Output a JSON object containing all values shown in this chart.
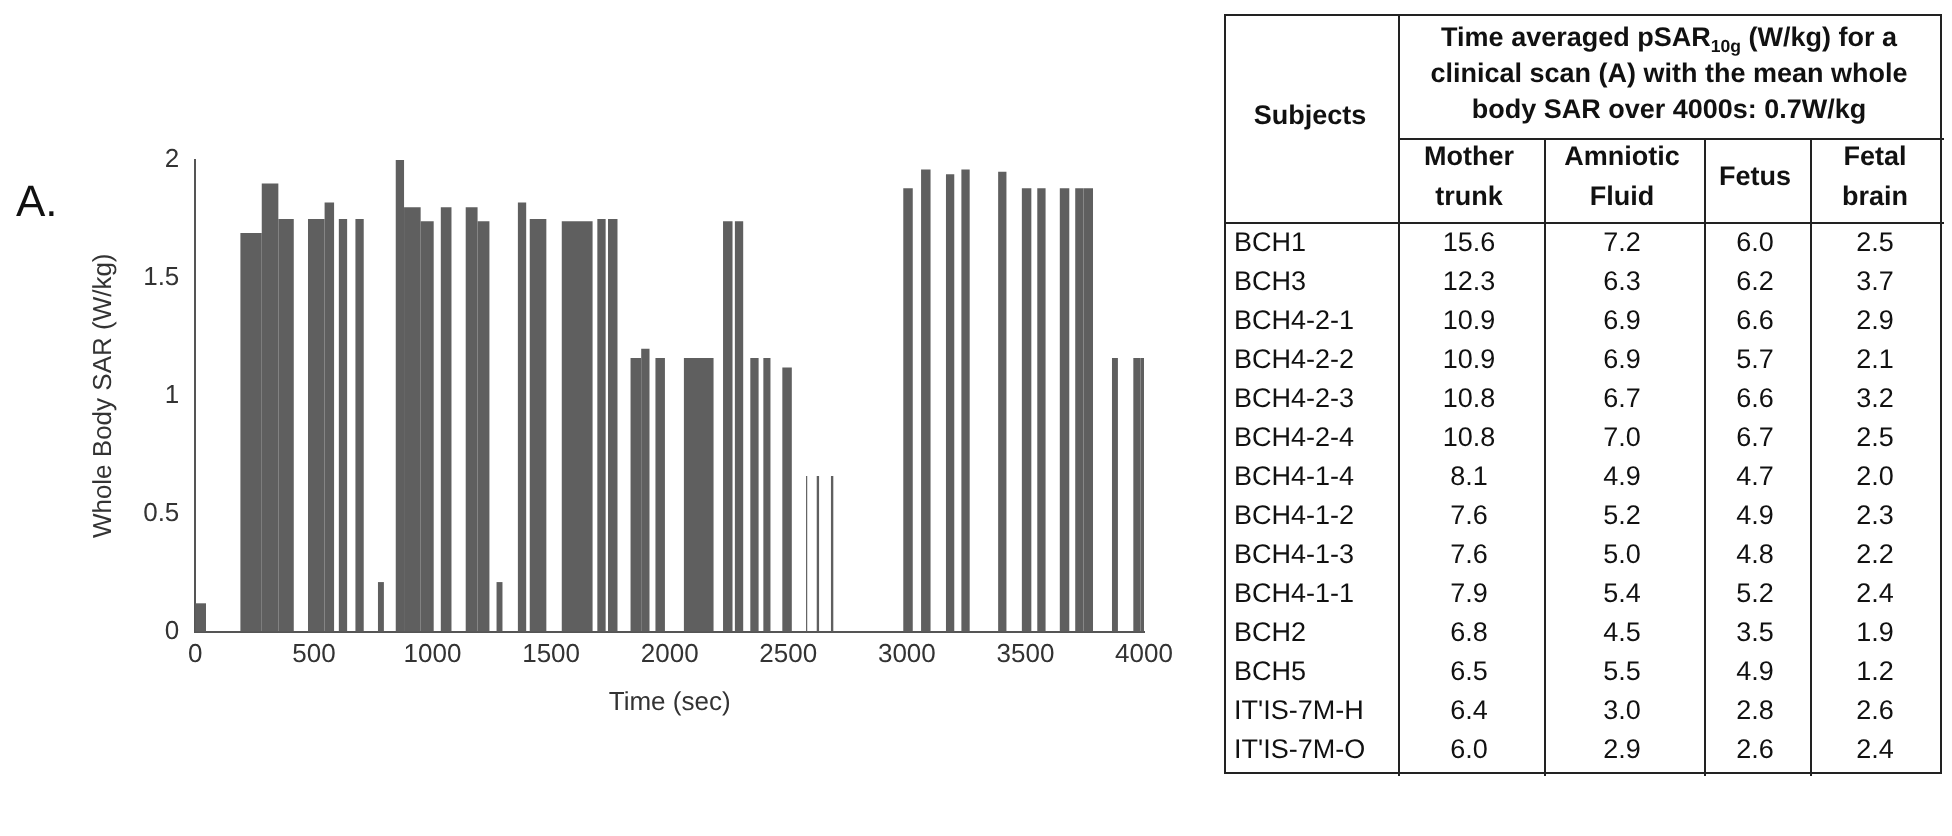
{
  "chart_data": [
    {
      "type": "histogram",
      "xlabel": "Time (sec)",
      "ylabel": "Whole Body SAR (W/kg)",
      "annotations": [
        "A."
      ],
      "color": "#5f5f5f",
      "bins": [
        0,
        45,
        190,
        280,
        350,
        415,
        475,
        545,
        585,
        605,
        640,
        675,
        710,
        770,
        795,
        845,
        880,
        950,
        1005,
        1035,
        1080,
        1140,
        1190,
        1240,
        1270,
        1295,
        1360,
        1395,
        1410,
        1480,
        1545,
        1675,
        1695,
        1730,
        1740,
        1780,
        1835,
        1880,
        1915,
        1940,
        1980,
        2060,
        2185,
        2225,
        2265,
        2275,
        2310,
        2340,
        2375,
        2395,
        2425,
        2475,
        2515,
        2575,
        2580,
        2620,
        2630,
        2680,
        2690,
        2985,
        3025,
        3060,
        3100,
        3165,
        3200,
        3230,
        3265,
        3385,
        3420,
        3485,
        3525,
        3550,
        3585,
        3645,
        3685,
        3710,
        3745,
        3785,
        3865,
        3890,
        3955,
        3985,
        4000
      ],
      "values": [
        0.12,
        0,
        1.69,
        1.9,
        1.75,
        0,
        1.75,
        1.82,
        0,
        1.75,
        0,
        1.75,
        0,
        0.21,
        0,
        2.0,
        1.8,
        1.74,
        0,
        1.8,
        0,
        1.8,
        1.74,
        0,
        0.21,
        0,
        1.82,
        0,
        1.75,
        0,
        1.74,
        0,
        1.75,
        0,
        1.75,
        0,
        1.16,
        1.2,
        0,
        1.16,
        0,
        1.16,
        0,
        1.74,
        0,
        1.74,
        0,
        1.16,
        0,
        1.16,
        0,
        1.12,
        0,
        0.66,
        0,
        0.66,
        0,
        0.66,
        0,
        1.88,
        0,
        1.96,
        0,
        1.94,
        0,
        1.96,
        0,
        1.95,
        0,
        1.88,
        0,
        1.88,
        0,
        1.88,
        0,
        1.88,
        1.88,
        0,
        1.16,
        0,
        1.16,
        1.16
      ],
      "xlim": [
        0,
        4000
      ],
      "xticks": [
        0,
        500,
        1000,
        1500,
        2000,
        2500,
        3000,
        3500,
        4000
      ],
      "ylim": [
        0,
        2
      ],
      "yticks": [
        0,
        0.5,
        1,
        1.5,
        2
      ],
      "grid": false,
      "legend": false
    },
    {
      "type": "heatmap",
      "title": "Time averaged pSAR$_{10g}$ (W/kg) for a clinical scan (A) with the mean whole body SAR over 4000s: 0.7W/kg",
      "ylabel": "Subjects",
      "categories": [
        "Mother trunk",
        "Amniotic Fluid",
        "Fetus",
        "Fetal brain"
      ],
      "y_categories": [
        "BCH1",
        "BCH3",
        "BCH4-2-1",
        "BCH4-2-2",
        "BCH4-2-3",
        "BCH4-2-4",
        "BCH4-1-4",
        "BCH4-1-2",
        "BCH4-1-3",
        "BCH4-1-1",
        "BCH2",
        "BCH5",
        "IT'IS-7M-H",
        "IT'IS-7M-O"
      ],
      "cells": [
        [
          15.6,
          7.2,
          6.0,
          2.5
        ],
        [
          12.3,
          6.3,
          6.2,
          3.7
        ],
        [
          10.9,
          6.9,
          6.6,
          2.9
        ],
        [
          10.9,
          6.9,
          5.7,
          2.1
        ],
        [
          10.8,
          6.7,
          6.6,
          3.2
        ],
        [
          10.8,
          7.0,
          6.7,
          2.5
        ],
        [
          8.1,
          4.9,
          4.7,
          2.0
        ],
        [
          7.6,
          5.2,
          4.9,
          2.3
        ],
        [
          7.6,
          5.0,
          4.8,
          2.2
        ],
        [
          7.9,
          5.4,
          5.2,
          2.4
        ],
        [
          6.8,
          4.5,
          3.5,
          1.9
        ],
        [
          6.5,
          5.5,
          4.9,
          1.2
        ],
        [
          6.4,
          3.0,
          2.8,
          2.6
        ],
        [
          6.0,
          2.9,
          2.6,
          2.4
        ]
      ],
      "data_labels": true,
      "cell_labels": [
        [
          "15.6",
          "7.2",
          "6.0",
          "2.5"
        ],
        [
          "12.3",
          "6.3",
          "6.2",
          "3.7"
        ],
        [
          "10.9",
          "6.9",
          "6.6",
          "2.9"
        ],
        [
          "10.9",
          "6.9",
          "5.7",
          "2.1"
        ],
        [
          "10.8",
          "6.7",
          "6.6",
          "3.2"
        ],
        [
          "10.8",
          "7.0",
          "6.7",
          "2.5"
        ],
        [
          "8.1",
          "4.9",
          "4.7",
          "2.0"
        ],
        [
          "7.6",
          "5.2",
          "4.9",
          "2.3"
        ],
        [
          "7.6",
          "5.0",
          "4.8",
          "2.2"
        ],
        [
          "7.9",
          "5.4",
          "5.2",
          "2.4"
        ],
        [
          "6.8",
          "4.5",
          "3.5",
          "1.9"
        ],
        [
          "6.5",
          "5.5",
          "4.9",
          "1.2"
        ],
        [
          "6.4",
          "3.0",
          "2.8",
          "2.6"
        ],
        [
          "6.0",
          "2.9",
          "2.6",
          "2.4"
        ]
      ]
    }
  ]
}
